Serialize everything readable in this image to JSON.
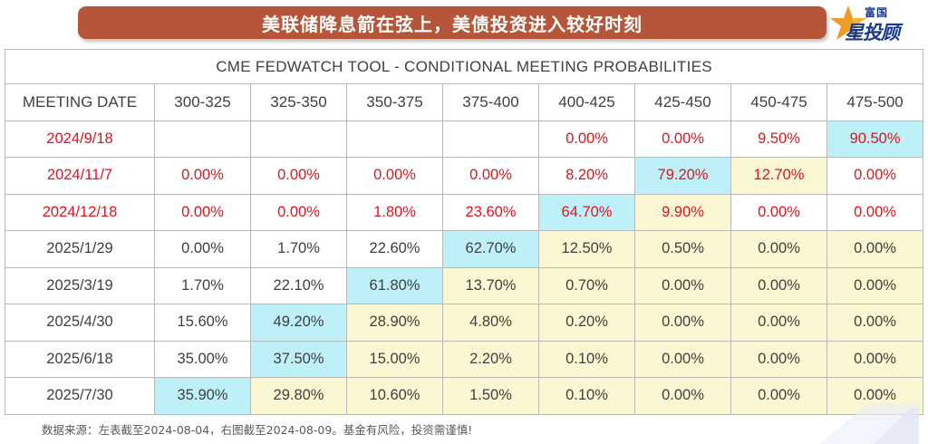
{
  "banner": {
    "title": "美联储降息箭在弦上，美债投资进入较好时刻"
  },
  "logo": {
    "top_text": "富国",
    "brand_text": "星投顾"
  },
  "table": {
    "caption": "CME FEDWATCH TOOL - CONDITIONAL MEETING PROBABILITIES",
    "headers": [
      "MEETING DATE",
      "300-325",
      "325-350",
      "350-375",
      "375-400",
      "400-425",
      "425-450",
      "450-475",
      "475-500"
    ],
    "rows": [
      {
        "date": "2024/9/18",
        "cells": [
          "",
          "",
          "",
          "",
          "0.00%",
          "0.00%",
          "9.50%",
          "90.50%"
        ]
      },
      {
        "date": "2024/11/7",
        "cells": [
          "0.00%",
          "0.00%",
          "0.00%",
          "0.00%",
          "8.20%",
          "79.20%",
          "12.70%",
          "0.00%"
        ]
      },
      {
        "date": "2024/12/18",
        "cells": [
          "0.00%",
          "0.00%",
          "1.80%",
          "23.60%",
          "64.70%",
          "9.90%",
          "0.00%",
          "0.00%"
        ]
      },
      {
        "date": "2025/1/29",
        "cells": [
          "0.00%",
          "1.70%",
          "22.60%",
          "62.70%",
          "12.50%",
          "0.50%",
          "0.00%",
          "0.00%"
        ]
      },
      {
        "date": "2025/3/19",
        "cells": [
          "1.70%",
          "22.10%",
          "61.80%",
          "13.70%",
          "0.70%",
          "0.00%",
          "0.00%",
          "0.00%"
        ]
      },
      {
        "date": "2025/4/30",
        "cells": [
          "15.60%",
          "49.20%",
          "28.90%",
          "4.80%",
          "0.20%",
          "0.00%",
          "0.00%",
          "0.00%"
        ]
      },
      {
        "date": "2025/6/18",
        "cells": [
          "35.00%",
          "37.50%",
          "15.00%",
          "2.20%",
          "0.10%",
          "0.00%",
          "0.00%",
          "0.00%"
        ]
      },
      {
        "date": "2025/7/30",
        "cells": [
          "35.90%",
          "29.80%",
          "10.60%",
          "1.50%",
          "0.10%",
          "0.00%",
          "0.00%",
          "0.00%"
        ]
      }
    ]
  },
  "colors": {
    "banner": "#b5563a",
    "red_text": "#e0141e",
    "highlight_blue": "#bdf0f7",
    "highlight_yellow": "#fbf7d2",
    "brand_blue": "#1c3a8c"
  },
  "footer": {
    "text": "数据来源：左表截至2024-08-04，右图截至2024-08-09。基金有风险，投资需谨慎!"
  }
}
